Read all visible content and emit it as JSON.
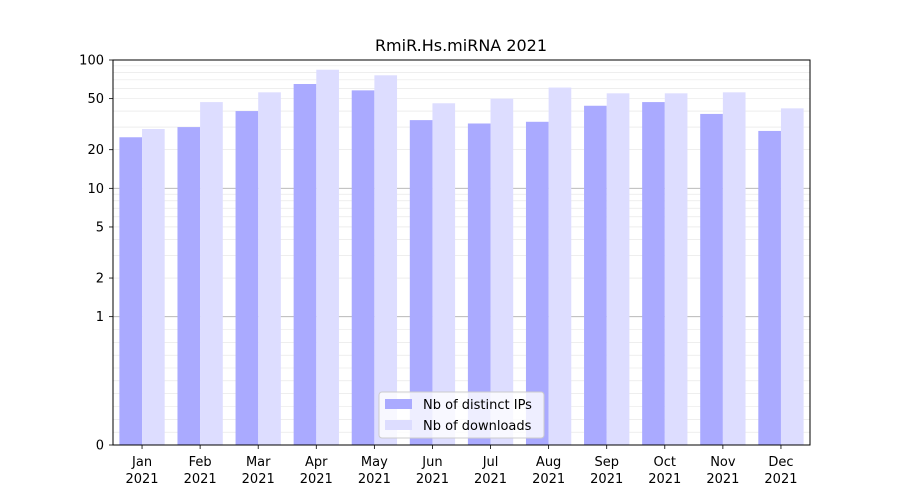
{
  "chart_data": {
    "type": "bar",
    "title": "RmiR.Hs.miRNA 2021",
    "xlabel": "",
    "ylabel": "",
    "scale": "symlog",
    "ylim": [
      0,
      100
    ],
    "yticks": [
      {
        "value": 0,
        "label": "0"
      },
      {
        "value": 1,
        "label": "1"
      },
      {
        "value": 2,
        "label": "2"
      },
      {
        "value": 5,
        "label": "5"
      },
      {
        "value": 10,
        "label": "10"
      },
      {
        "value": 20,
        "label": "20"
      },
      {
        "value": 50,
        "label": "50"
      },
      {
        "value": 100,
        "label": "100"
      }
    ],
    "categories": [
      {
        "month": "Jan",
        "year": "2021"
      },
      {
        "month": "Feb",
        "year": "2021"
      },
      {
        "month": "Mar",
        "year": "2021"
      },
      {
        "month": "Apr",
        "year": "2021"
      },
      {
        "month": "May",
        "year": "2021"
      },
      {
        "month": "Jun",
        "year": "2021"
      },
      {
        "month": "Jul",
        "year": "2021"
      },
      {
        "month": "Aug",
        "year": "2021"
      },
      {
        "month": "Sep",
        "year": "2021"
      },
      {
        "month": "Oct",
        "year": "2021"
      },
      {
        "month": "Nov",
        "year": "2021"
      },
      {
        "month": "Dec",
        "year": "2021"
      }
    ],
    "series": [
      {
        "name": "Nb of distinct IPs",
        "color": "#aaaaff",
        "values": [
          25,
          30,
          40,
          65,
          58,
          34,
          32,
          33,
          44,
          47,
          38,
          28
        ]
      },
      {
        "name": "Nb of downloads",
        "color": "#ddddff",
        "values": [
          29,
          47,
          56,
          84,
          76,
          46,
          50,
          61,
          55,
          55,
          56,
          42
        ]
      }
    ],
    "grid": true,
    "legend_position": "bottom-center"
  }
}
